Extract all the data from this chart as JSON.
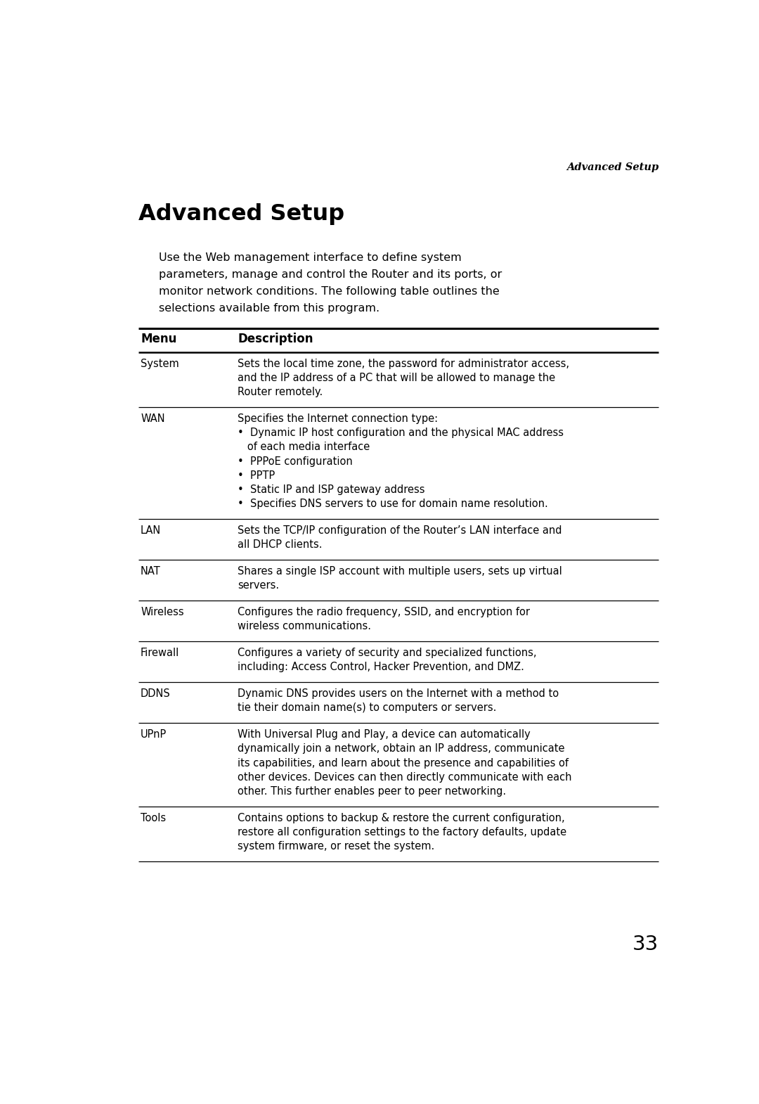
{
  "page_header": "Advanced Setup",
  "section_title": "Advanced Setup",
  "intro_lines": [
    "Use the Web management interface to define system",
    "parameters, manage and control the Router and its ports, or",
    "monitor network conditions. The following table outlines the",
    "selections available from this program."
  ],
  "col_header_menu": "Menu",
  "col_header_desc": "Description",
  "table_rows": [
    {
      "menu": "System",
      "description": "Sets the local time zone, the password for administrator access,\nand the IP address of a PC that will be allowed to manage the\nRouter remotely."
    },
    {
      "menu": "WAN",
      "description": "Specifies the Internet connection type:\n•  Dynamic IP host configuration and the physical MAC address\n   of each media interface\n•  PPPoE configuration\n•  PPTP\n•  Static IP and ISP gateway address\n•  Specifies DNS servers to use for domain name resolution."
    },
    {
      "menu": "LAN",
      "description": "Sets the TCP/IP configuration of the Router’s LAN interface and\nall DHCP clients."
    },
    {
      "menu": "NAT",
      "description": "Shares a single ISP account with multiple users, sets up virtual\nservers."
    },
    {
      "menu": "Wireless",
      "description": "Configures the radio frequency, SSID, and encryption for\nwireless communications."
    },
    {
      "menu": "Firewall",
      "description": "Configures a variety of security and specialized functions,\nincluding: Access Control, Hacker Prevention, and DMZ."
    },
    {
      "menu": "DDNS",
      "description": "Dynamic DNS provides users on the Internet with a method to\ntie their domain name(s) to computers or servers."
    },
    {
      "menu": "UPnP",
      "description": "With Universal Plug and Play, a device can automatically\ndynamically join a network, obtain an IP address, communicate\nits capabilities, and learn about the presence and capabilities of\nother devices. Devices can then directly communicate with each\nother. This further enables peer to peer networking."
    },
    {
      "menu": "Tools",
      "description": "Contains options to backup & restore the current configuration,\nrestore all configuration settings to the factory defaults, update\nsystem firmware, or reset the system."
    }
  ],
  "page_number": "33",
  "background_color": "#ffffff",
  "text_color": "#000000",
  "header_italic_fontsize": 10.5,
  "title_fontsize": 23,
  "intro_fontsize": 11.5,
  "col_header_fontsize": 12,
  "body_fontsize": 10.5,
  "menu_fontsize": 10.5
}
